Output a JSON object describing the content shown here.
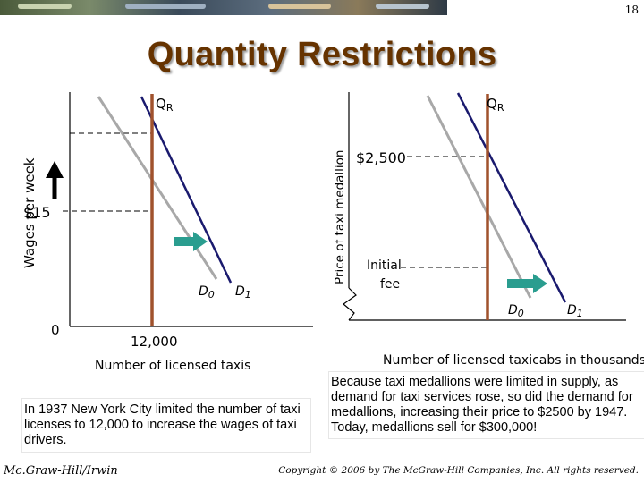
{
  "slide_number": "18",
  "title": "Quantity Restrictions",
  "left_graph": {
    "y_axis_label": "Wages per week",
    "x_axis_label": "Number of licensed taxis",
    "quantity_curve_label": "Q",
    "quantity_curve_sub": "R",
    "price_label": "$15",
    "quantity_tick": "12,000",
    "origin_label": "0",
    "demand0_label": "D",
    "demand0_sub": "0",
    "demand1_label": "D",
    "demand1_sub": "1"
  },
  "right_graph": {
    "y_axis_label": "Price of taxi medallion",
    "x_axis_label": "Number of licensed taxicabs in thousands",
    "quantity_curve_label": "Q",
    "quantity_curve_sub": "R",
    "price_label": "$2,500",
    "initial_fee_line1": "Initial",
    "initial_fee_line2": "fee",
    "demand0_label": "D",
    "demand0_sub": "0",
    "demand1_label": "D",
    "demand1_sub": "1"
  },
  "caption_left": "In 1937 New York City limited the number of taxi licenses to 12,000 to increase the wages of taxi drivers.",
  "caption_right": "Because taxi medallions were limited in supply, as demand for taxi services rose, so did the demand for medallions, increasing their price to $2500 by 1947.  Today, medallions sell for $300,000!",
  "footer_left": "Mc.Graw-Hill/Irwin",
  "footer_right": "Copyright © 2006 by The McGraw-Hill Companies, Inc. All rights reserved.",
  "colors": {
    "title": "#663300",
    "quantity_restriction": "#a0522d",
    "demand_original": "#a8a8a8",
    "demand_shifted": "#1a1a6e",
    "shift_arrow": "#2a9d8f",
    "axis": "#000000"
  }
}
